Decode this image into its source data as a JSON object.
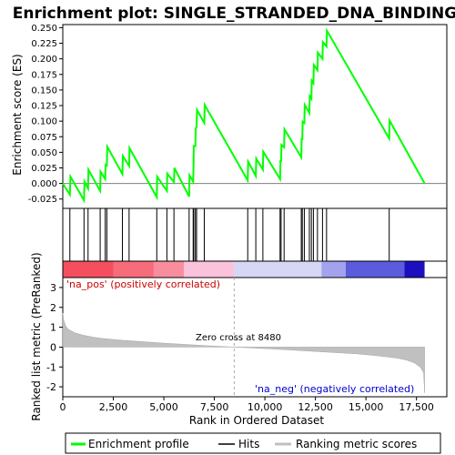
{
  "chart_data": {
    "type": "line",
    "title": "Enrichment plot: SINGLE_STRANDED_DNA_BINDING",
    "top_panel": {
      "ylabel": "Enrichment score (ES)",
      "ylim": [
        -0.04,
        0.255
      ],
      "yticks": [
        -0.025,
        0.0,
        0.025,
        0.05,
        0.075,
        0.1,
        0.125,
        0.15,
        0.175,
        0.2,
        0.225,
        0.25
      ],
      "ytick_labels": [
        "-0.025",
        "0.000",
        "0.025",
        "0.050",
        "0.075",
        "0.100",
        "0.125",
        "0.150",
        "0.175",
        "0.200",
        "0.225",
        "0.250"
      ],
      "series_name": "Enrichment profile",
      "color": "#00ff00",
      "points": [
        [
          0,
          0.0
        ],
        [
          350,
          -0.018
        ],
        [
          380,
          0.011
        ],
        [
          1050,
          -0.027
        ],
        [
          1070,
          0.003
        ],
        [
          1250,
          -0.008
        ],
        [
          1270,
          0.022
        ],
        [
          1850,
          -0.012
        ],
        [
          1870,
          0.019
        ],
        [
          2100,
          0.007
        ],
        [
          2120,
          0.03
        ],
        [
          2180,
          0.029
        ],
        [
          2200,
          0.059
        ],
        [
          2950,
          0.015
        ],
        [
          2970,
          0.044
        ],
        [
          3280,
          0.028
        ],
        [
          3300,
          0.057
        ],
        [
          4650,
          -0.022
        ],
        [
          4670,
          0.011
        ],
        [
          5150,
          -0.012
        ],
        [
          5170,
          0.016
        ],
        [
          5500,
          0.002
        ],
        [
          5520,
          0.025
        ],
        [
          6250,
          -0.021
        ],
        [
          6270,
          0.013
        ],
        [
          6450,
          0.003
        ],
        [
          6470,
          0.031
        ],
        [
          6480,
          0.06
        ],
        [
          6560,
          0.06
        ],
        [
          6580,
          0.089
        ],
        [
          6620,
          0.09
        ],
        [
          6640,
          0.118
        ],
        [
          7000,
          0.097
        ],
        [
          7020,
          0.126
        ],
        [
          9150,
          0.005
        ],
        [
          9170,
          0.035
        ],
        [
          9550,
          0.012
        ],
        [
          9570,
          0.04
        ],
        [
          9900,
          0.022
        ],
        [
          9920,
          0.051
        ],
        [
          10750,
          0.007
        ],
        [
          10770,
          0.036
        ],
        [
          10800,
          0.036
        ],
        [
          10820,
          0.062
        ],
        [
          10950,
          0.058
        ],
        [
          10970,
          0.087
        ],
        [
          11800,
          0.042
        ],
        [
          11820,
          0.072
        ],
        [
          11850,
          0.07
        ],
        [
          11870,
          0.099
        ],
        [
          11950,
          0.097
        ],
        [
          11970,
          0.126
        ],
        [
          12200,
          0.113
        ],
        [
          12220,
          0.14
        ],
        [
          12300,
          0.136
        ],
        [
          12320,
          0.165
        ],
        [
          12400,
          0.161
        ],
        [
          12420,
          0.19
        ],
        [
          12600,
          0.182
        ],
        [
          12620,
          0.21
        ],
        [
          12850,
          0.2
        ],
        [
          12870,
          0.227
        ],
        [
          13050,
          0.22
        ],
        [
          13070,
          0.245
        ],
        [
          16150,
          0.072
        ],
        [
          16170,
          0.101
        ],
        [
          17900,
          0.0
        ]
      ]
    },
    "hits": [
      350,
      1050,
      1250,
      1850,
      2100,
      2180,
      2950,
      3280,
      4650,
      5150,
      5500,
      6250,
      6450,
      6480,
      6560,
      6620,
      7000,
      9150,
      9550,
      9900,
      10750,
      10800,
      10950,
      11800,
      11850,
      11950,
      12200,
      12300,
      12400,
      12600,
      12850,
      13050,
      16150
    ],
    "rank_panel": {
      "ylabel": "Ranked list metric (PreRanked)",
      "ylim": [
        -2.5,
        3.5
      ],
      "yticks": [
        -2,
        -1,
        0,
        1,
        2,
        3
      ],
      "ytick_labels": [
        "-2",
        "-1",
        "0",
        "1",
        "2",
        "3"
      ],
      "xlabel": "Rank in Ordered Dataset",
      "xlim": [
        0,
        19000
      ],
      "xticks": [
        0,
        2500,
        5000,
        7500,
        10000,
        12500,
        15000,
        17500
      ],
      "xtick_labels": [
        "0",
        "2,500",
        "5,000",
        "7,500",
        "10,000",
        "12,500",
        "15,000",
        "17,500"
      ],
      "curve": [
        [
          0,
          1.72
        ],
        [
          50,
          1.35
        ],
        [
          150,
          1.05
        ],
        [
          300,
          0.88
        ],
        [
          600,
          0.72
        ],
        [
          1000,
          0.6
        ],
        [
          1500,
          0.5
        ],
        [
          2000,
          0.43
        ],
        [
          3000,
          0.34
        ],
        [
          4000,
          0.27
        ],
        [
          5000,
          0.2
        ],
        [
          6000,
          0.14
        ],
        [
          7000,
          0.08
        ],
        [
          8480,
          0.0
        ],
        [
          9500,
          -0.05
        ],
        [
          10500,
          -0.1
        ],
        [
          11500,
          -0.16
        ],
        [
          12500,
          -0.22
        ],
        [
          13500,
          -0.28
        ],
        [
          14500,
          -0.34
        ],
        [
          15500,
          -0.43
        ],
        [
          16500,
          -0.55
        ],
        [
          17000,
          -0.65
        ],
        [
          17400,
          -0.8
        ],
        [
          17700,
          -1.02
        ],
        [
          17850,
          -1.3
        ],
        [
          17900,
          -2.3
        ]
      ],
      "zero_cross_rank": 8480,
      "zero_cross_label": "Zero cross at 8480",
      "pos_label": "'na_pos' (positively correlated)",
      "neg_label": "'na_neg' (negatively correlated)",
      "pos_color": "#cc0000",
      "neg_color": "#0000cc"
    },
    "heatbar": {
      "x_end": 17900,
      "segments": [
        {
          "end": 2500,
          "color": "#f54e5e"
        },
        {
          "end": 4500,
          "color": "#f76c7a"
        },
        {
          "end": 6000,
          "color": "#f88e9d"
        },
        {
          "end": 8480,
          "color": "#fbc2dc"
        },
        {
          "end": 12800,
          "color": "#d6d6f5"
        },
        {
          "end": 14000,
          "color": "#a2a2ee"
        },
        {
          "end": 16900,
          "color": "#5b5bdd"
        },
        {
          "end": 17900,
          "color": "#1c0fbf"
        }
      ]
    },
    "legend": [
      {
        "label": "Enrichment profile",
        "color": "#00ff00"
      },
      {
        "label": "Hits",
        "color": "#000000"
      },
      {
        "label": "Ranking metric scores",
        "color": "#c0c0c0"
      }
    ]
  }
}
